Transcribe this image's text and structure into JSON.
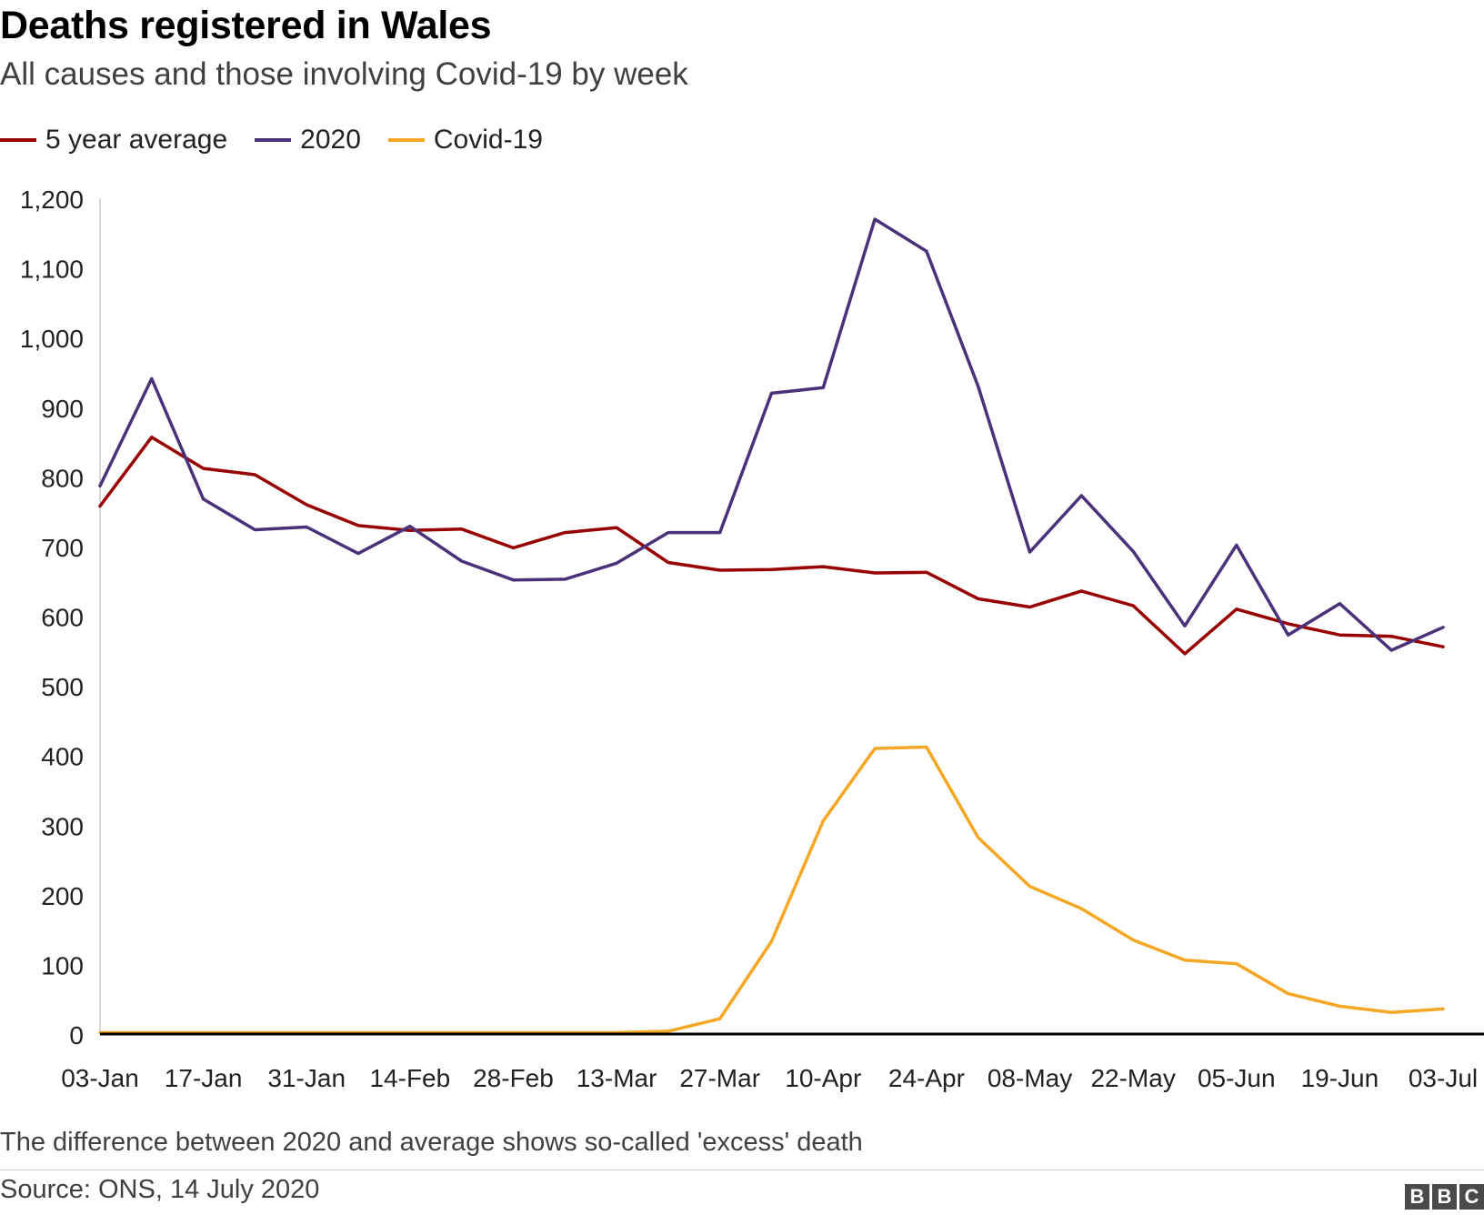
{
  "title": "Deaths registered in Wales",
  "subtitle": "All causes and those involving Covid-19 by week",
  "note": "The difference between 2020 and average shows so-called 'excess' death",
  "source": "Source: ONS, 14 July 2020",
  "logo": {
    "letters": [
      "B",
      "B",
      "C"
    ]
  },
  "colors": {
    "avg": "#990000",
    "y2020": "#4b3179",
    "covid": "#f5a623",
    "axis": "#000000",
    "yaxis": "#cccccc"
  },
  "legend": [
    {
      "label": "5 year average",
      "color": "#990000"
    },
    {
      "label": "2020",
      "color": "#4b3179"
    },
    {
      "label": "Covid-19",
      "color": "#f5a623"
    }
  ],
  "chart_data": {
    "type": "line",
    "title": "Deaths registered in Wales",
    "subtitle": "All causes and those involving Covid-19 by week",
    "x": [
      "03-Jan",
      "10-Jan",
      "17-Jan",
      "24-Jan",
      "31-Jan",
      "07-Feb",
      "14-Feb",
      "21-Feb",
      "28-Feb",
      "06-Mar",
      "13-Mar",
      "20-Mar",
      "27-Mar",
      "03-Apr",
      "10-Apr",
      "17-Apr",
      "24-Apr",
      "01-May",
      "08-May",
      "15-May",
      "22-May",
      "29-May",
      "05-Jun",
      "12-Jun",
      "19-Jun",
      "26-Jun",
      "03-Jul"
    ],
    "x_tick_labels": [
      "03-Jan",
      "17-Jan",
      "31-Jan",
      "14-Feb",
      "28-Feb",
      "13-Mar",
      "27-Mar",
      "10-Apr",
      "24-Apr",
      "08-May",
      "22-May",
      "05-Jun",
      "19-Jun",
      "03-Jul"
    ],
    "ylim": [
      0,
      1200
    ],
    "y_ticks": [
      0,
      100,
      200,
      300,
      400,
      500,
      600,
      700,
      800,
      900,
      1000,
      1100,
      1200
    ],
    "y_tick_labels": [
      "0",
      "100",
      "200",
      "300",
      "400",
      "500",
      "600",
      "700",
      "800",
      "900",
      "1,000",
      "1,100",
      "1,200"
    ],
    "grid": false,
    "legend_position": "top-left",
    "series": [
      {
        "name": "5 year average",
        "color": "#990000",
        "values": [
          758,
          857,
          812,
          803,
          760,
          730,
          723,
          725,
          698,
          720,
          727,
          677,
          666,
          667,
          671,
          662,
          663,
          625,
          613,
          636,
          615,
          546,
          610,
          589,
          573,
          571,
          556
        ]
      },
      {
        "name": "2020",
        "color": "#4b3179",
        "values": [
          787,
          941,
          768,
          724,
          728,
          690,
          729,
          679,
          652,
          653,
          676,
          720,
          720,
          920,
          928,
          1170,
          1124,
          930,
          692,
          773,
          693,
          586,
          702,
          573,
          618,
          551,
          584
        ]
      },
      {
        "name": "Covid-19",
        "color": "#f5a623",
        "values": [
          2,
          2,
          2,
          2,
          2,
          2,
          2,
          2,
          2,
          2,
          2,
          4,
          22,
          133,
          306,
          410,
          412,
          282,
          212,
          180,
          135,
          106,
          101,
          58,
          40,
          31,
          36
        ]
      }
    ]
  }
}
